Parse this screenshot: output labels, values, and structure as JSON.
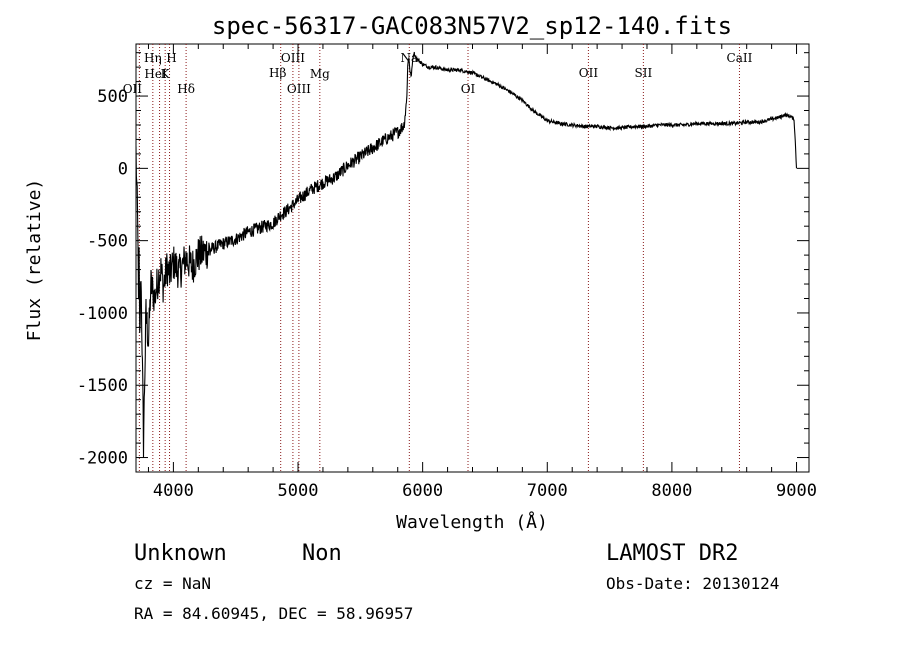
{
  "chart_data": {
    "type": "line",
    "title": "spec-56317-GAC083N57V2_sp12-140.fits",
    "xlabel": "Wavelength (Å)",
    "ylabel": "Flux (relative)",
    "xlim": [
      3700,
      9100
    ],
    "ylim": [
      -2100,
      860
    ],
    "x_ticks": [
      4000,
      5000,
      6000,
      7000,
      8000,
      9000
    ],
    "y_ticks": [
      -2000,
      -1500,
      -1000,
      -500,
      0,
      500
    ],
    "grid": false,
    "line_color": "#000000",
    "marker_color": "#8b1a1a",
    "spectrum": {
      "name": "",
      "x": [
        3700,
        3710,
        3720,
        3725,
        3730,
        3740,
        3760,
        3780,
        3800,
        3820,
        3850,
        3880,
        3900,
        3920,
        3950,
        3970,
        4000,
        4050,
        4100,
        4150,
        4200,
        4300,
        4400,
        4500,
        4600,
        4700,
        4800,
        4860,
        4900,
        5000,
        5100,
        5200,
        5300,
        5400,
        5500,
        5600,
        5700,
        5800,
        5850,
        5870,
        5880,
        5890,
        5900,
        5910,
        5920,
        5930,
        5950,
        6000,
        6050,
        6100,
        6200,
        6300,
        6400,
        6500,
        6600,
        6700,
        6800,
        6900,
        7000,
        7100,
        7200,
        7300,
        7400,
        7500,
        7600,
        7700,
        7800,
        7900,
        8000,
        8100,
        8200,
        8300,
        8400,
        8500,
        8600,
        8700,
        8800,
        8850,
        8880,
        8900,
        8950,
        8980,
        8990,
        9000
      ],
      "y": [
        110,
        -250,
        -820,
        -600,
        -1200,
        -700,
        -1900,
        -1000,
        -1200,
        -800,
        -900,
        -750,
        -700,
        -820,
        -680,
        -740,
        -650,
        -720,
        -620,
        -680,
        -600,
        -560,
        -520,
        -490,
        -440,
        -410,
        -380,
        -320,
        -300,
        -220,
        -150,
        -100,
        -60,
        20,
        80,
        140,
        200,
        250,
        300,
        450,
        700,
        780,
        660,
        640,
        750,
        800,
        760,
        720,
        700,
        700,
        680,
        680,
        660,
        620,
        580,
        530,
        470,
        390,
        330,
        310,
        300,
        290,
        290,
        280,
        280,
        290,
        290,
        300,
        300,
        300,
        310,
        310,
        310,
        310,
        320,
        320,
        340,
        350,
        360,
        370,
        360,
        340,
        180,
        0
      ]
    },
    "lines": [
      {
        "label": "OII",
        "x": 3727
      },
      {
        "label": "Hη",
        "x": 3835
      },
      {
        "label": "HeI",
        "x": 3889
      },
      {
        "label": "K",
        "x": 3934
      },
      {
        "label": "H",
        "x": 3969
      },
      {
        "label": "Hδ",
        "x": 4102
      },
      {
        "label": "Hβ",
        "x": 4861
      },
      {
        "label": "OIII",
        "x": 4959
      },
      {
        "label": "OIII",
        "x": 5007
      },
      {
        "label": "Mg",
        "x": 5175
      },
      {
        "label": "Na",
        "x": 5893
      },
      {
        "label": "OI",
        "x": 6364
      },
      {
        "label": "OII",
        "x": 7330
      },
      {
        "label": "SII",
        "x": 7771
      },
      {
        "label": "CaII",
        "x": 8542
      }
    ]
  },
  "footer": {
    "class_text": "Unknown",
    "subclass_text": "Non",
    "redshift_text": "cz = NaN",
    "coords_text": "RA =  84.60945, DEC =  58.96957",
    "survey_text": "LAMOST DR2",
    "obsdate_text": "Obs-Date: 20130124"
  }
}
